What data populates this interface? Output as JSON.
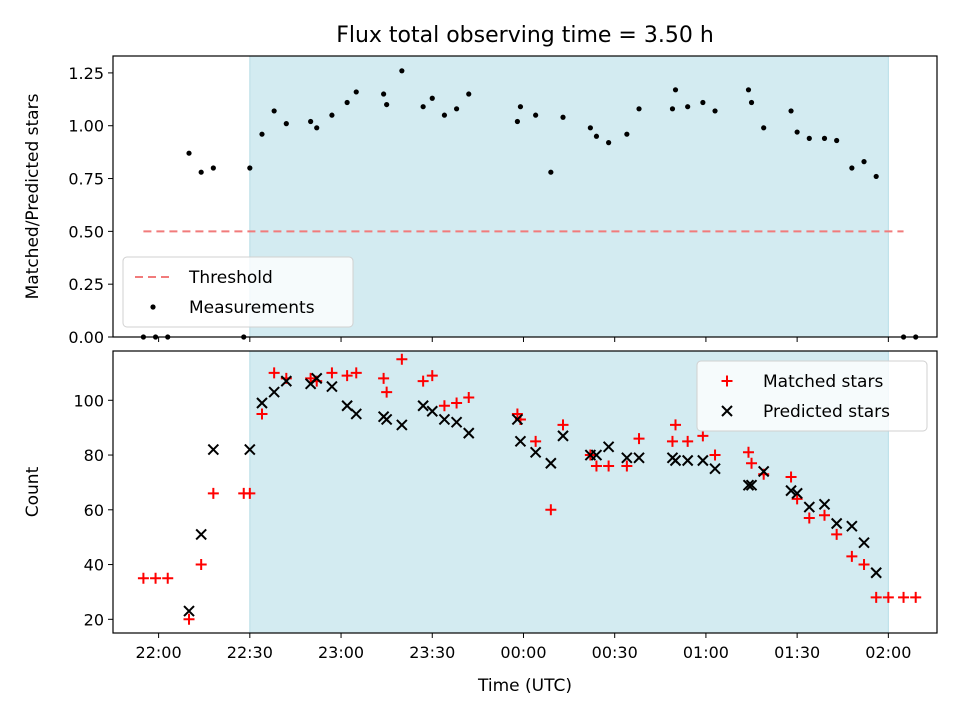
{
  "chart_data": [
    {
      "type": "scatter",
      "title": "Flux total observing time = 3.50 h",
      "xlabel": "",
      "ylabel": "Matched/Predicted stars",
      "ylim": [
        0,
        1.33
      ],
      "xlim": [
        "21:45",
        "02:16"
      ],
      "yticks": [
        "0.00",
        "0.25",
        "0.50",
        "0.75",
        "1.00",
        "1.25"
      ],
      "highlight_span": [
        "22:30",
        "02:00"
      ],
      "highlight_color": "#d3ebf1",
      "legend_position": "lower-left",
      "threshold": {
        "name": "Threshold",
        "y": 0.5,
        "x_range": [
          "21:55",
          "02:05"
        ],
        "color": "#f17b7b",
        "style": "dashed"
      },
      "series": [
        {
          "name": "Measurements",
          "color": "#000000",
          "marker": "dot",
          "points": [
            [
              "21:55",
              0.0
            ],
            [
              "21:59",
              0.0
            ],
            [
              "22:03",
              0.0
            ],
            [
              "22:10",
              0.87
            ],
            [
              "22:14",
              0.78
            ],
            [
              "22:18",
              0.8
            ],
            [
              "22:28",
              0.0
            ],
            [
              "22:30",
              0.8
            ],
            [
              "22:34",
              0.96
            ],
            [
              "22:38",
              1.07
            ],
            [
              "22:42",
              1.01
            ],
            [
              "22:50",
              1.02
            ],
            [
              "22:52",
              0.99
            ],
            [
              "22:57",
              1.05
            ],
            [
              "23:02",
              1.11
            ],
            [
              "23:05",
              1.16
            ],
            [
              "23:14",
              1.15
            ],
            [
              "23:15",
              1.1
            ],
            [
              "23:20",
              1.26
            ],
            [
              "23:27",
              1.09
            ],
            [
              "23:30",
              1.13
            ],
            [
              "23:34",
              1.05
            ],
            [
              "23:38",
              1.08
            ],
            [
              "23:42",
              1.15
            ],
            [
              "23:58",
              1.02
            ],
            [
              "23:59",
              1.09
            ],
            [
              "00:04",
              1.05
            ],
            [
              "00:09",
              0.78
            ],
            [
              "00:13",
              1.04
            ],
            [
              "00:22",
              0.99
            ],
            [
              "00:24",
              0.95
            ],
            [
              "00:28",
              0.92
            ],
            [
              "00:34",
              0.96
            ],
            [
              "00:38",
              1.08
            ],
            [
              "00:49",
              1.08
            ],
            [
              "00:50",
              1.17
            ],
            [
              "00:54",
              1.09
            ],
            [
              "00:59",
              1.11
            ],
            [
              "01:03",
              1.07
            ],
            [
              "01:14",
              1.17
            ],
            [
              "01:15",
              1.11
            ],
            [
              "01:19",
              0.99
            ],
            [
              "01:28",
              1.07
            ],
            [
              "01:30",
              0.97
            ],
            [
              "01:34",
              0.94
            ],
            [
              "01:39",
              0.94
            ],
            [
              "01:43",
              0.93
            ],
            [
              "01:48",
              0.8
            ],
            [
              "01:52",
              0.83
            ],
            [
              "01:56",
              0.76
            ],
            [
              "02:05",
              0.0
            ],
            [
              "02:09",
              0.0
            ]
          ]
        }
      ]
    },
    {
      "type": "scatter",
      "title": "",
      "xlabel": "Time (UTC)",
      "ylabel": "Count",
      "ylim": [
        15,
        118
      ],
      "xlim": [
        "21:45",
        "02:16"
      ],
      "yticks": [
        "20",
        "40",
        "60",
        "80",
        "100"
      ],
      "xticks": [
        "22:00",
        "22:30",
        "23:00",
        "23:30",
        "00:00",
        "00:30",
        "01:00",
        "01:30",
        "02:00"
      ],
      "highlight_span": [
        "22:30",
        "02:00"
      ],
      "highlight_color": "#d3ebf1",
      "legend_position": "upper-right",
      "series": [
        {
          "name": "Matched stars",
          "color": "#ff0000",
          "marker": "plus",
          "points": [
            [
              "21:55",
              35
            ],
            [
              "21:59",
              35
            ],
            [
              "22:03",
              35
            ],
            [
              "22:10",
              20
            ],
            [
              "22:14",
              40
            ],
            [
              "22:18",
              66
            ],
            [
              "22:28",
              66
            ],
            [
              "22:30",
              66
            ],
            [
              "22:34",
              95
            ],
            [
              "22:38",
              110
            ],
            [
              "22:42",
              108
            ],
            [
              "22:50",
              108
            ],
            [
              "22:52",
              107
            ],
            [
              "22:57",
              110
            ],
            [
              "23:02",
              109
            ],
            [
              "23:05",
              110
            ],
            [
              "23:14",
              108
            ],
            [
              "23:15",
              103
            ],
            [
              "23:20",
              115
            ],
            [
              "23:27",
              107
            ],
            [
              "23:30",
              109
            ],
            [
              "23:34",
              98
            ],
            [
              "23:38",
              99
            ],
            [
              "23:42",
              101
            ],
            [
              "23:58",
              95
            ],
            [
              "23:59",
              93
            ],
            [
              "00:04",
              85
            ],
            [
              "00:09",
              60
            ],
            [
              "00:13",
              91
            ],
            [
              "00:22",
              80
            ],
            [
              "00:24",
              76
            ],
            [
              "00:28",
              76
            ],
            [
              "00:34",
              76
            ],
            [
              "00:38",
              86
            ],
            [
              "00:49",
              85
            ],
            [
              "00:50",
              91
            ],
            [
              "00:54",
              85
            ],
            [
              "00:59",
              87
            ],
            [
              "01:03",
              80
            ],
            [
              "01:14",
              81
            ],
            [
              "01:15",
              77
            ],
            [
              "01:19",
              73
            ],
            [
              "01:28",
              72
            ],
            [
              "01:30",
              64
            ],
            [
              "01:34",
              57
            ],
            [
              "01:39",
              58
            ],
            [
              "01:43",
              51
            ],
            [
              "01:48",
              43
            ],
            [
              "01:52",
              40
            ],
            [
              "01:56",
              28
            ],
            [
              "02:00",
              28
            ],
            [
              "02:05",
              28
            ],
            [
              "02:09",
              28
            ]
          ]
        },
        {
          "name": "Predicted stars",
          "color": "#000000",
          "marker": "x",
          "points": [
            [
              "22:10",
              23
            ],
            [
              "22:14",
              51
            ],
            [
              "22:18",
              82
            ],
            [
              "22:30",
              82
            ],
            [
              "22:34",
              99
            ],
            [
              "22:38",
              103
            ],
            [
              "22:42",
              107
            ],
            [
              "22:50",
              106
            ],
            [
              "22:52",
              108
            ],
            [
              "22:57",
              105
            ],
            [
              "23:02",
              98
            ],
            [
              "23:05",
              95
            ],
            [
              "23:14",
              94
            ],
            [
              "23:15",
              93
            ],
            [
              "23:20",
              91
            ],
            [
              "23:27",
              98
            ],
            [
              "23:30",
              96
            ],
            [
              "23:34",
              93
            ],
            [
              "23:38",
              92
            ],
            [
              "23:42",
              88
            ],
            [
              "23:58",
              93
            ],
            [
              "23:59",
              85
            ],
            [
              "00:04",
              81
            ],
            [
              "00:09",
              77
            ],
            [
              "00:13",
              87
            ],
            [
              "00:22",
              80
            ],
            [
              "00:24",
              80
            ],
            [
              "00:28",
              83
            ],
            [
              "00:34",
              79
            ],
            [
              "00:38",
              79
            ],
            [
              "00:49",
              79
            ],
            [
              "00:50",
              78
            ],
            [
              "00:54",
              78
            ],
            [
              "00:59",
              78
            ],
            [
              "01:03",
              75
            ],
            [
              "01:14",
              69
            ],
            [
              "01:15",
              69
            ],
            [
              "01:19",
              74
            ],
            [
              "01:28",
              67
            ],
            [
              "01:30",
              66
            ],
            [
              "01:34",
              61
            ],
            [
              "01:39",
              62
            ],
            [
              "01:43",
              55
            ],
            [
              "01:48",
              54
            ],
            [
              "01:52",
              48
            ],
            [
              "01:56",
              37
            ]
          ]
        }
      ]
    }
  ]
}
